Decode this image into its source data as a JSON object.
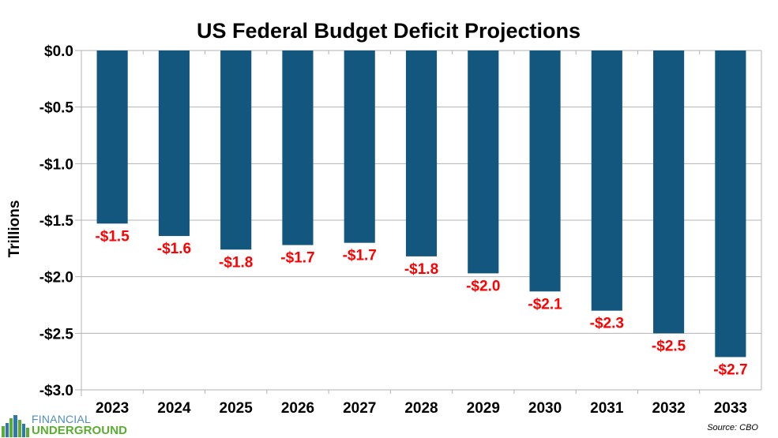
{
  "chart_data": {
    "type": "bar",
    "title": "US Federal Budget Deficit Projections",
    "xlabel": "",
    "ylabel": "Trillions",
    "categories": [
      "2023",
      "2024",
      "2025",
      "2026",
      "2027",
      "2028",
      "2029",
      "2030",
      "2031",
      "2032",
      "2033"
    ],
    "values": [
      -1.53,
      -1.64,
      -1.76,
      -1.72,
      -1.7,
      -1.82,
      -1.97,
      -2.13,
      -2.3,
      -2.5,
      -2.71
    ],
    "data_labels": [
      "-$1.5",
      "-$1.6",
      "-$1.8",
      "-$1.7",
      "-$1.7",
      "-$1.8",
      "-$2.0",
      "-$2.1",
      "-$2.3",
      "-$2.5",
      "-$2.7"
    ],
    "ylim": [
      -3.0,
      0.0
    ],
    "yticks": [
      0.0,
      -0.5,
      -1.0,
      -1.5,
      -2.0,
      -2.5,
      -3.0
    ],
    "ytick_labels": [
      "$0.0",
      "-$0.5",
      "-$1.0",
      "-$1.5",
      "-$2.0",
      "-$2.5",
      "-$3.0"
    ],
    "grid": true,
    "legend": "none",
    "colors": {
      "bar": "#13577f",
      "data_label": "#ff0000",
      "grid": "#b3b3b3"
    },
    "annotations": [
      "Source: CBO"
    ]
  },
  "source_note": "Source: CBO",
  "logo": {
    "line1": "FINANCIAL",
    "line2": "UNDERGROUND"
  }
}
